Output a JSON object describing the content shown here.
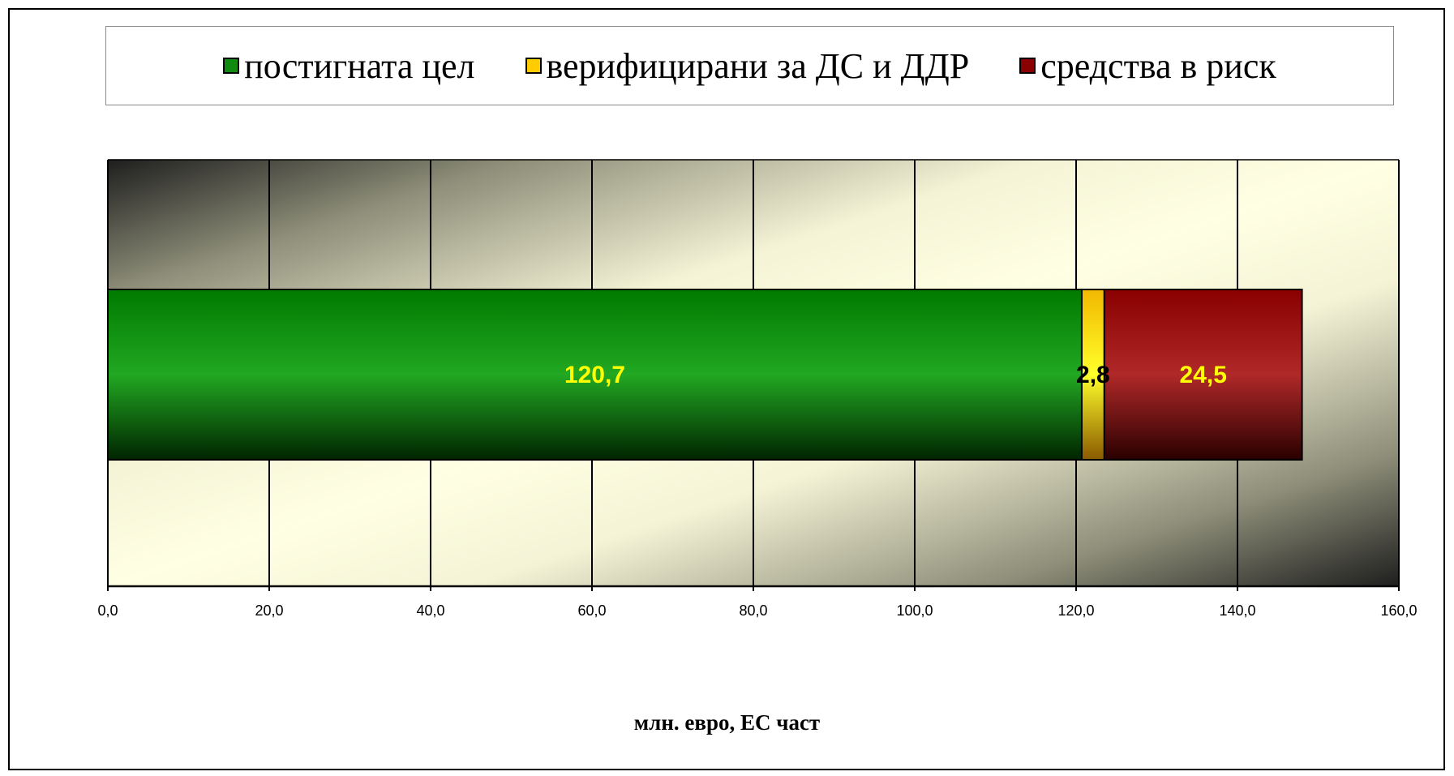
{
  "chart_data": {
    "type": "bar",
    "orientation": "horizontal",
    "stacked": true,
    "categories": [
      ""
    ],
    "series": [
      {
        "name": "постигната цел",
        "values": [
          120.7
        ],
        "label": "120,7",
        "color": "#118a11",
        "label_color": "#ffff00"
      },
      {
        "name": "верифицирани за ДС и ДДР",
        "values": [
          2.8
        ],
        "label": "2,8",
        "color": "#ffcc00",
        "label_color": "#000000"
      },
      {
        "name": "средства в риск",
        "values": [
          24.5
        ],
        "label": "24,5",
        "color": "#8b0000",
        "label_color": "#ffff00"
      }
    ],
    "xlim": [
      0,
      160
    ],
    "xticks": [
      0,
      20,
      40,
      60,
      80,
      100,
      120,
      140,
      160
    ],
    "xtick_labels": [
      "0,0",
      "20,0",
      "40,0",
      "60,0",
      "80,0",
      "100,0",
      "120,0",
      "140,0",
      "160,0"
    ],
    "xlabel": "млн. евро, ЕС част",
    "grid": true,
    "legend_position": "top"
  }
}
